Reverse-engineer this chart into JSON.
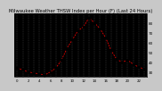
{
  "title": "Milwaukee Weather THSW Index per Hour (F) (Last 24 Hours)",
  "title_fontsize": 3.8,
  "background_color": "#c8c8c8",
  "plot_bg_color": "#000000",
  "grid_color": "#606060",
  "line_color": "#ff0000",
  "marker_color": "#000000",
  "hours": [
    0,
    1,
    2,
    3,
    4,
    5,
    6,
    7,
    8,
    9,
    10,
    11,
    12,
    13,
    14,
    15,
    16,
    17,
    18,
    19,
    20,
    21,
    22,
    23
  ],
  "values": [
    34,
    32,
    30,
    29,
    28,
    27,
    30,
    34,
    42,
    54,
    63,
    72,
    76,
    85,
    80,
    74,
    65,
    52,
    43,
    40,
    42,
    38,
    35,
    33
  ],
  "ylim": [
    25,
    90
  ],
  "yticks": [
    30,
    40,
    50,
    60,
    70,
    80
  ],
  "ytick_labels": [
    "30",
    "40",
    "50",
    "60",
    "70",
    "80"
  ],
  "xlim": [
    -0.5,
    23.5
  ],
  "ylabel_fontsize": 3.0,
  "xlabel_fontsize": 2.8,
  "linewidth": 0.55,
  "markersize": 1.8
}
